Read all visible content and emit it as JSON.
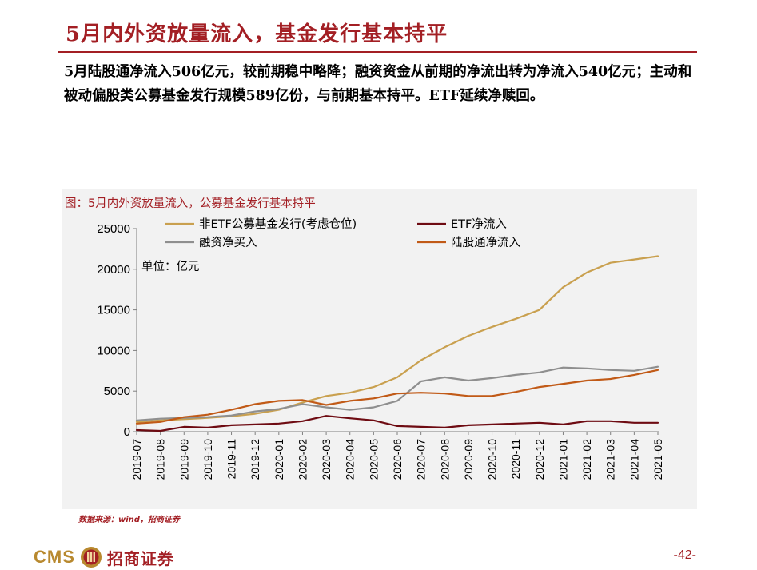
{
  "slide": {
    "title": "5月内外资放量流入，基金发行基本持平",
    "summary": "5月陆股通净流入506亿元，较前期稳中略降；融资资金从前期的净流出转为净流入540亿元；主动和被动偏股类公募基金发行规模589亿份，与前期基本持平。ETF延续净赎回。",
    "source": "数据来源：wind，招商证券",
    "page_number": "-42-",
    "logo_text": "CMS",
    "logo_cn": "招商证券"
  },
  "chart_data": {
    "type": "line",
    "title": "图：5月内外资放量流入，公募基金发行基本持平",
    "unit_label": "单位：亿元",
    "xlabel": "",
    "ylabel": "",
    "ylim": [
      0,
      25000
    ],
    "yticks": [
      0,
      5000,
      10000,
      15000,
      20000,
      25000
    ],
    "grid": false,
    "legend_position": "top",
    "categories": [
      "2019-07",
      "2019-08",
      "2019-09",
      "2019-10",
      "2019-11",
      "2019-12",
      "2020-01",
      "2020-02",
      "2020-03",
      "2020-04",
      "2020-05",
      "2020-06",
      "2020-07",
      "2020-08",
      "2020-09",
      "2020-10",
      "2020-11",
      "2020-12",
      "2021-01",
      "2021-02",
      "2021-03",
      "2021-04",
      "2021-05"
    ],
    "series": [
      {
        "name": "非ETF公募基金发行(考虑仓位)",
        "color": "#c9a04f",
        "values": [
          1200,
          1400,
          1550,
          1700,
          1900,
          2200,
          2700,
          3600,
          4400,
          4800,
          5500,
          6700,
          8800,
          10400,
          11800,
          12900,
          13900,
          15000,
          17800,
          19600,
          20800,
          21200,
          21600
        ]
      },
      {
        "name": "ETF净流入",
        "color": "#6e0b12",
        "values": [
          200,
          100,
          600,
          500,
          800,
          900,
          1000,
          1300,
          1950,
          1650,
          1400,
          700,
          600,
          500,
          800,
          900,
          1000,
          1100,
          900,
          1300,
          1300,
          1100,
          1100
        ]
      },
      {
        "name": "融资净买入",
        "color": "#8f8f8f",
        "values": [
          1400,
          1600,
          1700,
          1800,
          2000,
          2500,
          2800,
          3400,
          3000,
          2700,
          3000,
          3800,
          6200,
          6700,
          6300,
          6600,
          7000,
          7300,
          7900,
          7800,
          7600,
          7500,
          8000
        ]
      },
      {
        "name": "陆股通净流入",
        "color": "#c15a17",
        "values": [
          1000,
          1200,
          1800,
          2100,
          2700,
          3400,
          3800,
          3900,
          3300,
          3800,
          4100,
          4700,
          4800,
          4700,
          4400,
          4400,
          4900,
          5500,
          5900,
          6300,
          6500,
          7000,
          7600
        ]
      }
    ]
  }
}
